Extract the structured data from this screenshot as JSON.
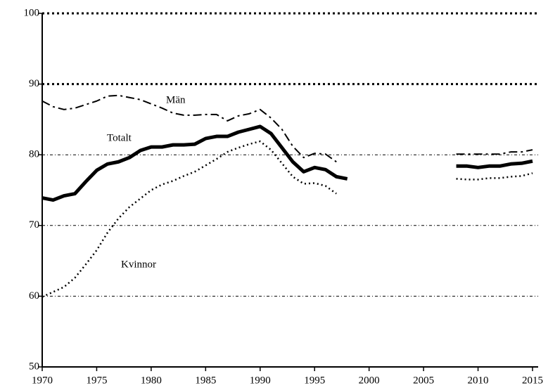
{
  "chart_data": {
    "type": "line",
    "x": [
      1970,
      1971,
      1972,
      1973,
      1974,
      1975,
      1976,
      1977,
      1978,
      1979,
      1980,
      1981,
      1982,
      1983,
      1984,
      1985,
      1986,
      1987,
      1988,
      1989,
      1990,
      1991,
      1992,
      1993,
      1994,
      1995,
      1996,
      1997,
      1998,
      1999,
      2000,
      2001,
      2002,
      2003,
      2004,
      2005,
      2006,
      2007,
      2008,
      2009,
      2010,
      2011,
      2012,
      2013,
      2014,
      2015
    ],
    "series": [
      {
        "name": "Män",
        "color": "#000000",
        "values": [
          87.6,
          86.8,
          86.4,
          86.6,
          87.1,
          87.6,
          88.3,
          88.4,
          88.1,
          87.8,
          87.2,
          86.6,
          85.9,
          85.6,
          85.6,
          85.7,
          85.7,
          84.8,
          85.5,
          85.8,
          86.4,
          85.2,
          83.6,
          81.2,
          79.6,
          80.2,
          80.1,
          79.0,
          null,
          null,
          null,
          null,
          null,
          null,
          null,
          null,
          null,
          null,
          80.1,
          80.1,
          80.1,
          80.1,
          80.1,
          80.4,
          80.4,
          80.7
        ]
      },
      {
        "name": "Totalt",
        "color": "#000000",
        "values": [
          73.9,
          73.6,
          74.2,
          74.5,
          76.2,
          77.8,
          78.7,
          79.0,
          79.6,
          80.6,
          81.1,
          81.1,
          81.4,
          81.4,
          81.5,
          82.3,
          82.6,
          82.6,
          83.2,
          83.6,
          84.0,
          83.0,
          81.0,
          79.0,
          77.6,
          78.2,
          77.9,
          76.9,
          76.6,
          null,
          null,
          null,
          null,
          null,
          null,
          null,
          null,
          null,
          78.4,
          78.4,
          78.2,
          78.4,
          78.4,
          78.7,
          78.8,
          79.1
        ]
      },
      {
        "name": "Kvinnor",
        "color": "#000000",
        "values": [
          59.9,
          60.6,
          61.3,
          62.6,
          64.5,
          66.5,
          69.0,
          71.0,
          72.6,
          73.8,
          75.0,
          75.8,
          76.3,
          77.0,
          77.6,
          78.5,
          79.4,
          80.4,
          81.0,
          81.5,
          81.9,
          80.7,
          78.8,
          76.9,
          75.9,
          76.0,
          75.6,
          74.5,
          null,
          null,
          null,
          null,
          null,
          null,
          null,
          null,
          null,
          null,
          76.6,
          76.5,
          76.5,
          76.7,
          76.7,
          76.9,
          77.0,
          77.4
        ]
      }
    ],
    "xlim": [
      1970,
      2015
    ],
    "xticks": [
      1970,
      1975,
      1980,
      1985,
      1990,
      1995,
      2000,
      2005,
      2010,
      2015
    ],
    "ylim": [
      50,
      100
    ],
    "yticks": [
      50,
      60,
      70,
      80,
      90,
      100
    ],
    "grid": true
  }
}
